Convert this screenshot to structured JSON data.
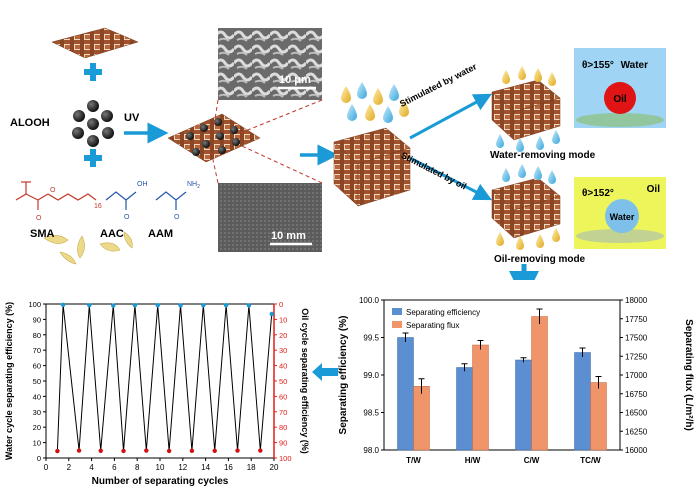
{
  "colors": {
    "accent_blue": "#1a9ad6",
    "fabric_brown": "#a0522d",
    "efficiency_bar": "#5b8fd1",
    "flux_bar": "#f0956a",
    "water_axis": "#000000",
    "oil_axis": "#e0201a",
    "water_panel": "#9fd4f5",
    "oil_panel": "#eef55a"
  },
  "scheme": {
    "aloohh_label": "ALOOH",
    "uv_label": "UV",
    "sma_label": "SMA",
    "aac_label": "AAC",
    "aam_label": "AAM",
    "subscript_16": "16",
    "oh_label": "OH",
    "nh2_label": "NH",
    "nh2_sub": "2",
    "o_label": "O",
    "scale_sem": "10 μm",
    "scale_optical": "10 mm",
    "stim_water": "Stimulated by water",
    "stim_oil": "Stimulated by oil",
    "water_mode": "Water-removing mode",
    "oil_mode": "Oil-removing mode",
    "water_panel_label": "Water",
    "water_angle": "θ>155°",
    "oil_drop_label": "Oil",
    "oil_panel_label": "Oil",
    "oil_angle": "θ>152°",
    "water_drop_label": "Water"
  },
  "chart_data": [
    {
      "type": "line",
      "xlabel": "Number of separating cycles",
      "ylabel": "Water cycle separating efficiency (%)",
      "y2label": "Oil cycle separating efficiency (%)",
      "xlim": [
        0,
        20
      ],
      "ylim": [
        0,
        100
      ],
      "y2lim": [
        100,
        0
      ],
      "y2_reversed": true,
      "xticks": [
        0,
        2,
        4,
        6,
        8,
        10,
        12,
        14,
        16,
        18,
        20
      ],
      "yticks": [
        0,
        10,
        20,
        30,
        40,
        50,
        60,
        70,
        80,
        90,
        100
      ],
      "y2ticks": [
        0,
        10,
        20,
        30,
        40,
        50,
        60,
        70,
        80,
        90,
        100
      ],
      "series": [
        {
          "name": "water",
          "marker_color": "#1a9ad6",
          "x": [
            1.5,
            3.8,
            5.9,
            7.8,
            9.8,
            11.8,
            13.8,
            15.8,
            17.8,
            19.8
          ],
          "values": [
            99.5,
            99.2,
            99.0,
            99.2,
            99.2,
            99.1,
            99.2,
            99.2,
            99.1,
            93.5
          ]
        },
        {
          "name": "oil",
          "marker_color": "#d01010",
          "x": [
            1.0,
            2.9,
            4.8,
            6.8,
            8.8,
            10.8,
            12.8,
            14.8,
            16.8,
            18.8
          ],
          "values": [
            95.5,
            95.2,
            95.3,
            95.4,
            95.2,
            95.4,
            95.3,
            95.3,
            95.2,
            95.2
          ]
        }
      ]
    },
    {
      "type": "bar",
      "categories": [
        "T/W",
        "H/W",
        "C/W",
        "TC/W"
      ],
      "ylabel": "Separating efficiency  (%)",
      "y2label": "Separating flux (L/m²/h)",
      "ylim": [
        98.0,
        100.0
      ],
      "y2lim": [
        16000,
        18000
      ],
      "yticks": [
        "98.0",
        "98.5",
        "99.0",
        "99.5",
        "100.0"
      ],
      "y2ticks": [
        16000,
        16250,
        16500,
        16750,
        17000,
        17250,
        17500,
        17750,
        18000
      ],
      "legend": "top-left",
      "series": [
        {
          "name": "Separating efficiency",
          "axis": "left",
          "values": [
            99.5,
            99.1,
            99.2,
            99.3
          ],
          "errors": [
            0.06,
            0.05,
            0.03,
            0.06
          ]
        },
        {
          "name": "Separating flux",
          "axis": "right",
          "values": [
            16850,
            17400,
            17780,
            16900
          ],
          "errors": [
            100,
            60,
            100,
            80
          ]
        }
      ]
    }
  ]
}
